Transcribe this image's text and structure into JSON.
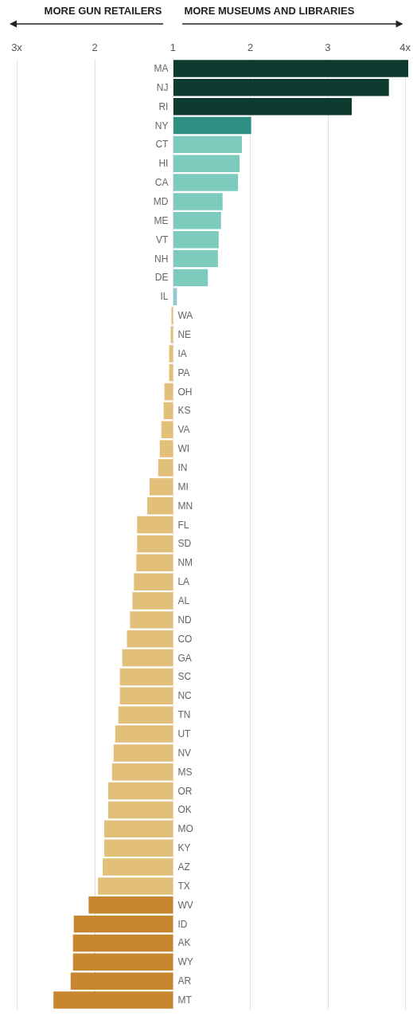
{
  "chart_data": [
    {
      "type": "bar",
      "orientation": "horizontal",
      "annotations": [
        "MORE MUSEUMS AND LIBRARIES"
      ],
      "categories": [
        "MA",
        "NJ",
        "RI",
        "NY",
        "CT",
        "HI",
        "CA",
        "MD",
        "ME",
        "VT",
        "NH",
        "DE",
        "IL",
        null,
        null,
        null,
        null,
        null,
        null,
        null,
        null,
        null,
        null,
        null,
        null,
        null,
        null,
        null,
        null,
        null,
        null,
        null,
        null,
        null,
        null,
        null,
        null,
        null,
        null,
        null,
        null,
        null,
        null,
        null,
        null,
        null,
        null,
        null,
        null,
        null
      ],
      "values": [
        4.04,
        3.79,
        3.31,
        2.01,
        1.89,
        1.86,
        1.84,
        1.64,
        1.62,
        1.59,
        1.58,
        1.45,
        1.05,
        null,
        null,
        null,
        null,
        null,
        null,
        null,
        null,
        null,
        null,
        null,
        null,
        null,
        null,
        null,
        null,
        null,
        null,
        null,
        null,
        null,
        null,
        null,
        null,
        null,
        null,
        null,
        null,
        null,
        null,
        null,
        null,
        null,
        null,
        null,
        null,
        null
      ],
      "colors": [
        "#0d3b30",
        "#0d3b30",
        "#0d3b30",
        "#2f8f83",
        "#7ccbbd",
        "#7ccbbd",
        "#7ccbbd",
        "#7ccbbd",
        "#7ccbbd",
        "#7ccbbd",
        "#7ccbbd",
        "#7ccbbd",
        "#8fc9d6",
        null,
        null,
        null,
        null,
        null,
        null,
        null,
        null,
        null,
        null,
        null,
        null,
        null,
        null,
        null,
        null,
        null,
        null,
        null,
        null,
        null,
        null,
        null,
        null,
        null,
        null,
        null,
        null,
        null,
        null,
        null,
        null,
        null,
        null,
        null,
        null,
        null
      ],
      "xlim": [
        1,
        4.05
      ],
      "xticks": [
        2,
        3,
        {
          "value": 4,
          "label": "4x"
        }
      ],
      "grid": "x"
    },
    {
      "type": "bar",
      "orientation": "horizontal",
      "annotations": [
        "MORE GUN RETAILERS"
      ],
      "categories": [
        null,
        null,
        null,
        null,
        null,
        null,
        null,
        null,
        null,
        null,
        null,
        null,
        null,
        "WA",
        "NE",
        "IA",
        "PA",
        "OH",
        "KS",
        "VA",
        "WI",
        "IN",
        "MI",
        "MN",
        "FL",
        "SD",
        "NM",
        "LA",
        "AL",
        "ND",
        "CO",
        "GA",
        "SC",
        "NC",
        "TN",
        "UT",
        "NV",
        "MS",
        "OR",
        "OK",
        "MO",
        "KY",
        "AZ",
        "TX",
        "WV",
        "ID",
        "AK",
        "WY",
        "AR",
        "MT"
      ],
      "values": [
        null,
        null,
        null,
        null,
        null,
        null,
        null,
        null,
        null,
        null,
        null,
        null,
        null,
        1.02,
        1.03,
        1.05,
        1.05,
        1.11,
        1.12,
        1.15,
        1.17,
        1.19,
        1.3,
        1.33,
        1.46,
        1.46,
        1.47,
        1.5,
        1.52,
        1.55,
        1.59,
        1.65,
        1.68,
        1.68,
        1.7,
        1.74,
        1.76,
        1.78,
        1.83,
        1.83,
        1.88,
        1.88,
        1.9,
        1.96,
        2.08,
        2.27,
        2.28,
        2.28,
        2.31,
        2.53
      ],
      "colors": [
        null,
        null,
        null,
        null,
        null,
        null,
        null,
        null,
        null,
        null,
        null,
        null,
        null,
        "#e2c07a",
        "#e2c07a",
        "#e2c07a",
        "#e2c07a",
        "#e2c07a",
        "#e2c07a",
        "#e2c07a",
        "#e2c07a",
        "#e2c07a",
        "#e2c07a",
        "#e2c07a",
        "#e2c07a",
        "#e2c07a",
        "#e2c07a",
        "#e2c07a",
        "#e2c07a",
        "#e2c07a",
        "#e2c07a",
        "#e2c07a",
        "#e2c07a",
        "#e2c07a",
        "#e2c07a",
        "#e2c07a",
        "#e2c07a",
        "#e2c07a",
        "#e2c07a",
        "#e2c07a",
        "#e2c07a",
        "#e2c07a",
        "#e2c07a",
        "#e2c07a",
        "#c8862e",
        "#c8862e",
        "#c8862e",
        "#c8862e",
        "#c8862e",
        "#c8862e"
      ],
      "xlim": [
        3,
        1
      ],
      "xticks": [
        {
          "value": 3,
          "label": "3x"
        },
        2,
        1
      ],
      "grid": "x"
    }
  ]
}
